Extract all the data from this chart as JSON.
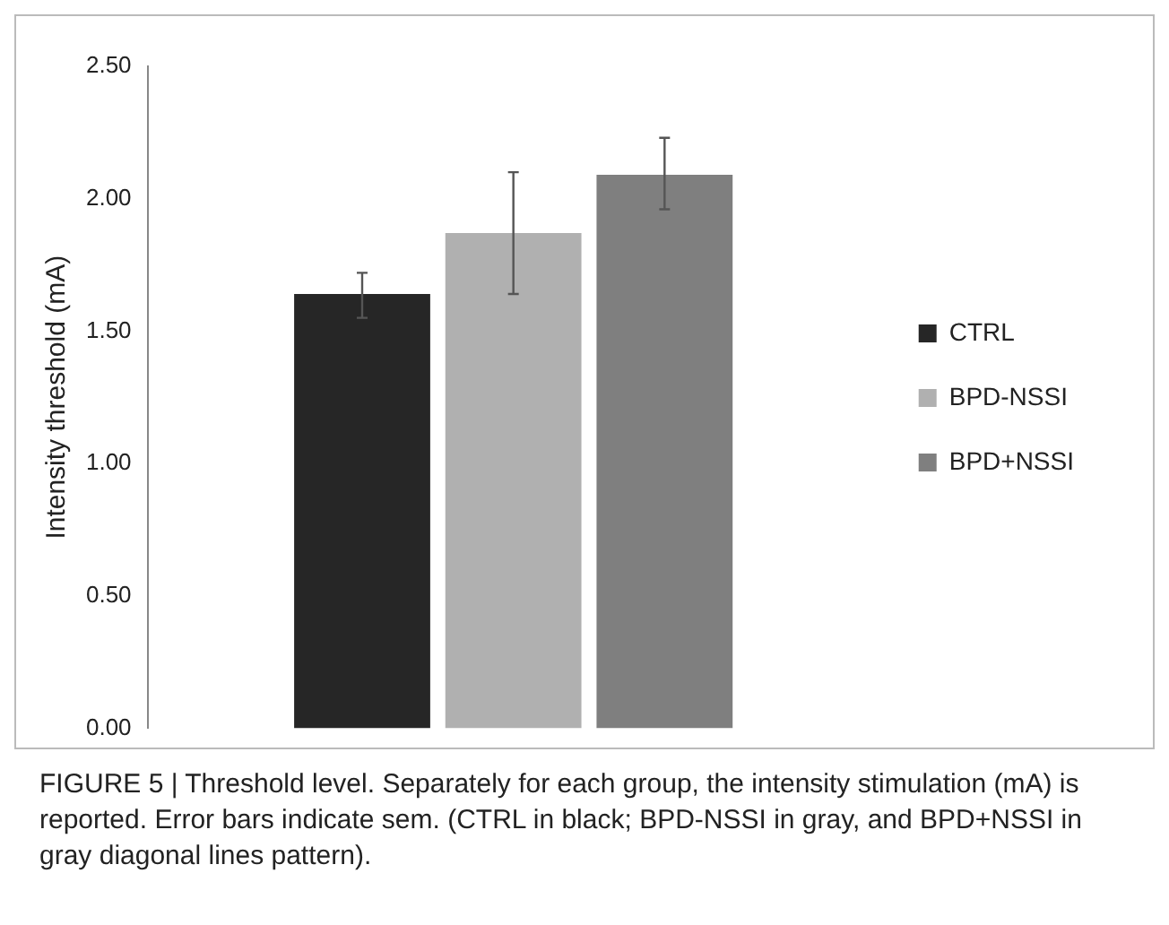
{
  "chart_data": {
    "type": "bar",
    "ylabel": "Intensity threshold (mA)",
    "categories": [
      null
    ],
    "series": [
      {
        "name": "CTRL",
        "color": "#262626",
        "values": [
          1.64
        ],
        "errors": [
          [
            1.55,
            1.72
          ]
        ]
      },
      {
        "name": "BPD-NSSI",
        "color": "#b0b0b0",
        "values": [
          1.87
        ],
        "errors": [
          [
            1.64,
            2.1
          ]
        ]
      },
      {
        "name": "BPD+NSSI",
        "color": "#7f7f7f",
        "values": [
          2.09
        ],
        "errors": [
          [
            1.96,
            2.23
          ]
        ]
      }
    ],
    "ylim": [
      0,
      2.5
    ],
    "yticks": [
      {
        "value": 0,
        "label": "0.00"
      },
      {
        "value": 0.5,
        "label": "0.50"
      },
      {
        "value": 1,
        "label": "1.00"
      },
      {
        "value": 1.5,
        "label": "1.50"
      },
      {
        "value": 2,
        "label": "2.00"
      },
      {
        "value": 2.5,
        "label": "2.50"
      }
    ],
    "grid": false,
    "legend": "right",
    "tick_labels": "y",
    "annotations": [
      "FIGURE 5 | Threshold level. Separately for each group, the intensity stimulation (mA) is reported. Error bars indicate sem. (CTRL in black; BPD-NSSI in gray, and BPD+NSSI in gray diagonal lines pattern)."
    ]
  }
}
